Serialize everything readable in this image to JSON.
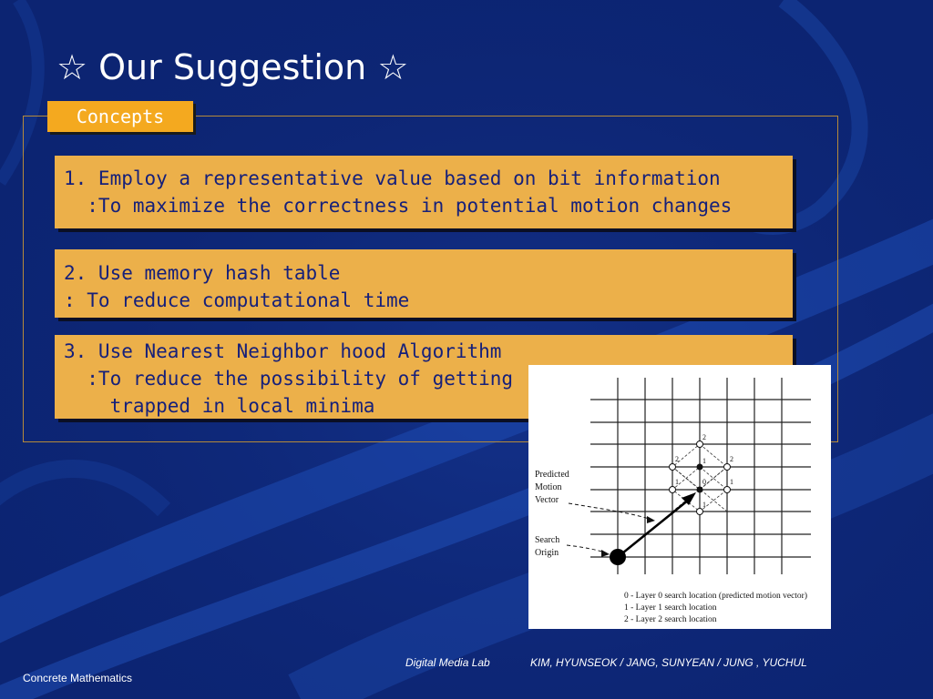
{
  "slide": {
    "title": "☆ Our Suggestion ☆",
    "section_tab": "Concepts"
  },
  "concepts": [
    {
      "lines": [
        "1. Employ a representative value based on bit information",
        "  :To maximize the correctness in potential motion changes"
      ]
    },
    {
      "lines": [
        "2. Use memory hash table",
        ": To reduce computational time"
      ]
    },
    {
      "lines": [
        "3. Use Nearest Neighbor hood Algorithm",
        "  :To reduce the possibility of getting",
        "    trapped in local minima"
      ]
    }
  ],
  "figure": {
    "labels": {
      "predicted_motion_vector": [
        "Predicted",
        "Motion",
        "Vector"
      ],
      "search_origin": [
        "Search",
        "Origin"
      ]
    },
    "node_numbers": [
      "2",
      "2",
      "2",
      "1",
      "1",
      "0",
      "1",
      "1"
    ],
    "legend": [
      "0 - Layer 0 search location (predicted motion vector)",
      "1 - Layer 1 search location",
      "2 - Layer 2 search location"
    ]
  },
  "footer": {
    "course": "Concrete Mathematics",
    "lab": "Digital Media Lab",
    "authors": "KIM, HYUNSEOK / JANG, SUNYEAN / JUNG , YUCHUL"
  },
  "colors": {
    "background": "#0c2472",
    "tab": "#f4a91f",
    "concept_box": "#ecb04a",
    "concept_text": "#16207a",
    "panel_border": "#b58a3a"
  }
}
